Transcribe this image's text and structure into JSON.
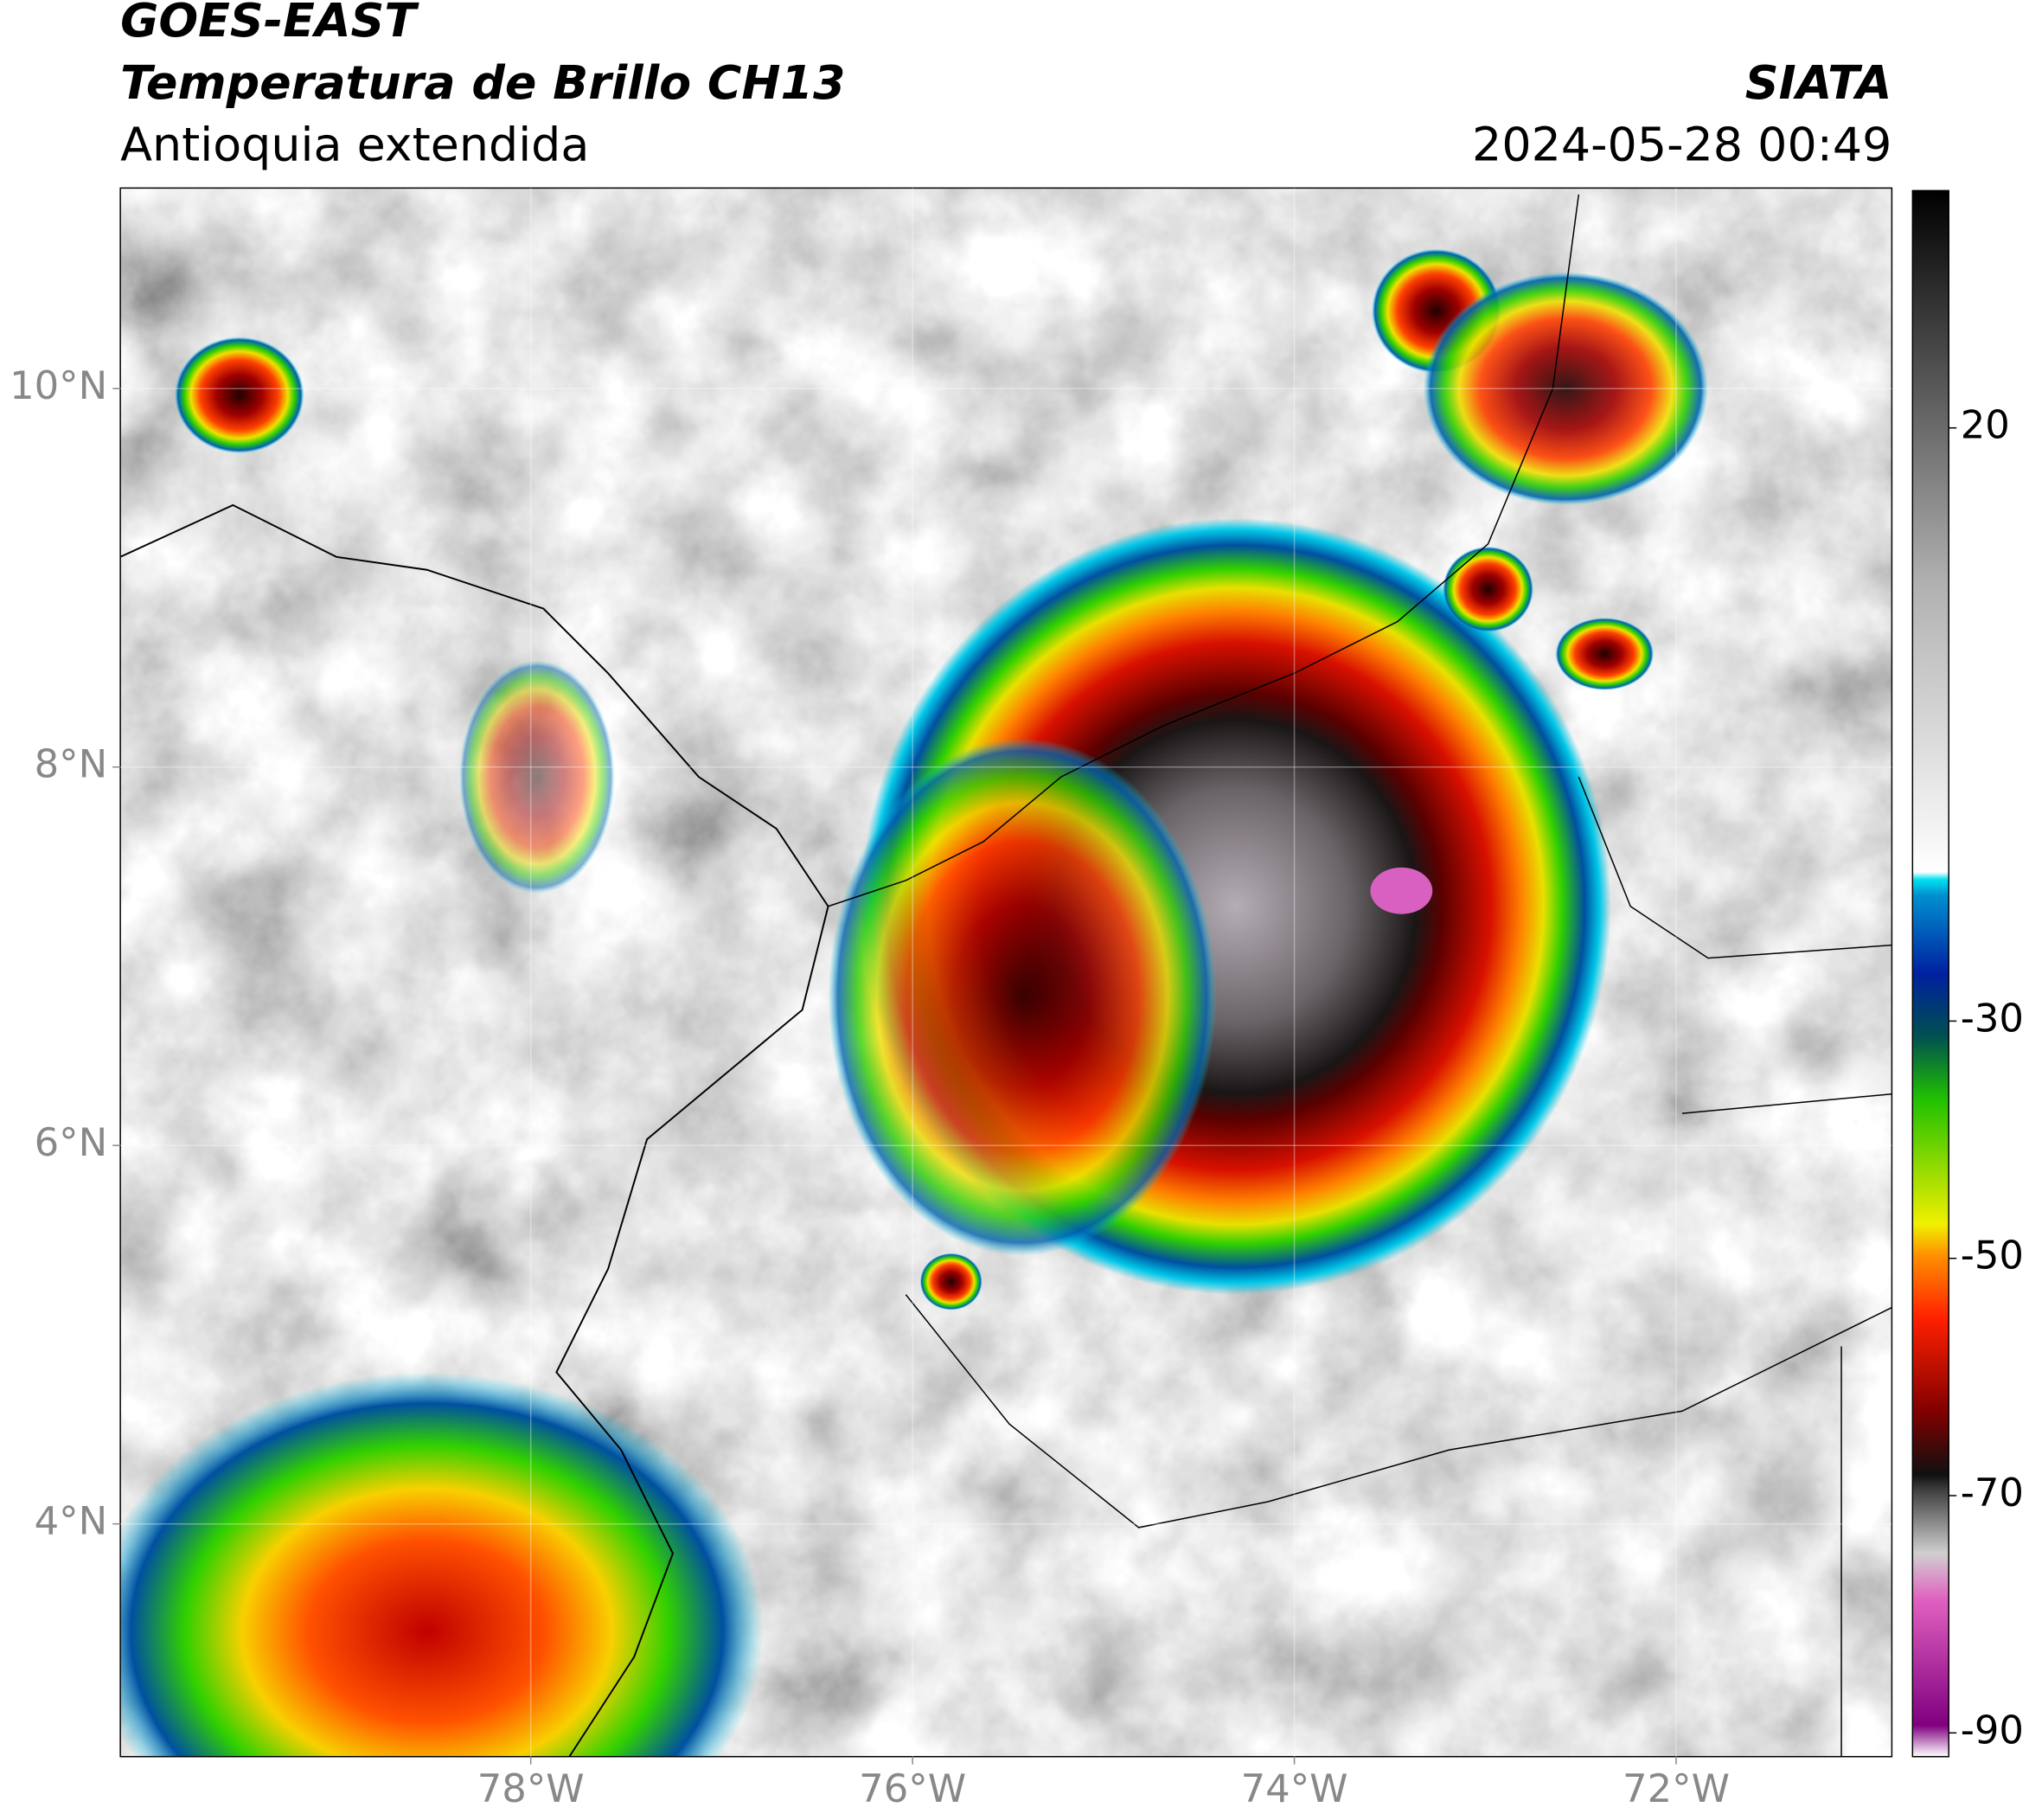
{
  "header": {
    "title": "GOES-EAST",
    "subtitle": "Temperatura de Brillo CH13",
    "region": "Antioquia extendida",
    "source": "SIATA",
    "datetime": "2024-05-28 00:49"
  },
  "map": {
    "xlim": [
      -80.15,
      -70.87
    ],
    "ylim": [
      2.77,
      11.06
    ],
    "xticks": [
      {
        "value": -78,
        "label": "78°W"
      },
      {
        "value": -76,
        "label": "76°W"
      },
      {
        "value": -74,
        "label": "74°W"
      },
      {
        "value": -72,
        "label": "72°W"
      }
    ],
    "yticks": [
      {
        "value": 4,
        "label": "4°N"
      },
      {
        "value": 6,
        "label": "6°N"
      },
      {
        "value": 8,
        "label": "8°N"
      },
      {
        "value": 10,
        "label": "10°N"
      }
    ],
    "grid": true
  },
  "colorbar": {
    "lim": [
      -92,
      40
    ],
    "ticks": [
      -90,
      -70,
      -50,
      -30,
      20
    ]
  }
}
